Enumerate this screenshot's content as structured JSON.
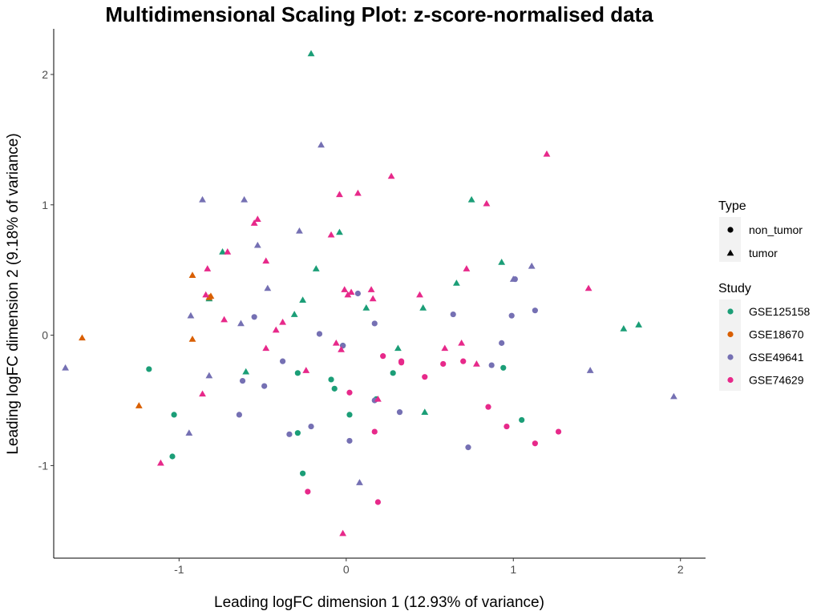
{
  "chart_data": {
    "type": "scatter",
    "title": "Multidimensional Scaling Plot: z-score-normalised data",
    "xlabel": "Leading logFC dimension 1 (12.93% of variance)",
    "ylabel": "Leading logFC dimension 2 (9.18% of variance)",
    "xlim": [
      -1.75,
      2.15
    ],
    "ylim": [
      -1.71,
      2.35
    ],
    "x_ticks": [
      -1,
      0,
      1,
      2
    ],
    "y_ticks": [
      -1,
      0,
      1,
      2
    ],
    "x_tick_labels": [
      "-1",
      "0",
      "1",
      "2"
    ],
    "y_tick_labels": [
      "-1",
      "0",
      "1",
      "2"
    ],
    "grid": false,
    "legend": {
      "placement": "right",
      "shape_title": "Type",
      "shape_entries": [
        {
          "label": "non_tumor",
          "shape": "circle"
        },
        {
          "label": "tumor",
          "shape": "triangle"
        }
      ],
      "color_title": "Study",
      "color_entries": [
        {
          "label": "GSE125158",
          "color": "#1B9E77"
        },
        {
          "label": "GSE18670",
          "color": "#D95F02"
        },
        {
          "label": "GSE49641",
          "color": "#7570B3"
        },
        {
          "label": "GSE74629",
          "color": "#E7298A"
        }
      ]
    },
    "series": [
      {
        "study": "GSE125158",
        "type": "non_tumor",
        "color": "#1B9E77",
        "shape": "circle",
        "points": [
          [
            -1.18,
            -0.26
          ],
          [
            -1.03,
            -0.61
          ],
          [
            -1.04,
            -0.93
          ],
          [
            -0.29,
            -0.29
          ],
          [
            -0.26,
            -1.06
          ],
          [
            -0.29,
            -0.75
          ],
          [
            -0.09,
            -0.34
          ],
          [
            -0.07,
            -0.41
          ],
          [
            0.02,
            -0.61
          ],
          [
            0.18,
            -0.49
          ],
          [
            0.28,
            -0.29
          ],
          [
            0.94,
            -0.25
          ],
          [
            1.05,
            -0.65
          ],
          [
            -0.02,
            -0.08
          ]
        ]
      },
      {
        "study": "GSE125158",
        "type": "tumor",
        "color": "#1B9E77",
        "shape": "triangle",
        "points": [
          [
            -0.21,
            2.16
          ],
          [
            -0.74,
            0.64
          ],
          [
            -0.82,
            0.28
          ],
          [
            -0.6,
            -0.28
          ],
          [
            -0.26,
            0.27
          ],
          [
            -0.31,
            0.16
          ],
          [
            -0.18,
            0.51
          ],
          [
            -0.04,
            0.79
          ],
          [
            0.12,
            0.21
          ],
          [
            0.31,
            -0.1
          ],
          [
            0.46,
            0.21
          ],
          [
            0.66,
            0.4
          ],
          [
            0.75,
            1.04
          ],
          [
            0.93,
            0.56
          ],
          [
            1.66,
            0.05
          ],
          [
            1.75,
            0.08
          ],
          [
            0.47,
            -0.59
          ]
        ]
      },
      {
        "study": "GSE18670",
        "type": "tumor",
        "color": "#D95F02",
        "shape": "triangle",
        "points": [
          [
            -1.58,
            -0.02
          ],
          [
            -1.24,
            -0.54
          ],
          [
            -0.92,
            0.46
          ],
          [
            -0.92,
            -0.03
          ],
          [
            -0.81,
            0.3
          ],
          [
            -0.82,
            0.29
          ]
        ]
      },
      {
        "study": "GSE49641",
        "type": "non_tumor",
        "color": "#7570B3",
        "shape": "circle",
        "points": [
          [
            -0.62,
            -0.35
          ],
          [
            -0.55,
            0.14
          ],
          [
            -0.49,
            -0.39
          ],
          [
            -0.38,
            -0.2
          ],
          [
            -0.34,
            -0.76
          ],
          [
            -0.21,
            -0.7
          ],
          [
            -0.16,
            0.01
          ],
          [
            -0.02,
            -0.08
          ],
          [
            0.02,
            -0.81
          ],
          [
            0.17,
            0.09
          ],
          [
            0.17,
            -0.5
          ],
          [
            0.32,
            -0.59
          ],
          [
            0.64,
            0.16
          ],
          [
            0.73,
            -0.86
          ],
          [
            0.87,
            -0.23
          ],
          [
            0.93,
            -0.06
          ],
          [
            0.99,
            0.15
          ],
          [
            1.01,
            0.43
          ],
          [
            1.13,
            0.19
          ],
          [
            0.07,
            0.32
          ],
          [
            -0.64,
            -0.61
          ]
        ]
      },
      {
        "study": "GSE49641",
        "type": "tumor",
        "color": "#7570B3",
        "shape": "triangle",
        "points": [
          [
            -1.68,
            -0.25
          ],
          [
            -0.86,
            1.04
          ],
          [
            -0.93,
            0.15
          ],
          [
            -0.82,
            -0.31
          ],
          [
            -0.63,
            0.09
          ],
          [
            -0.61,
            1.04
          ],
          [
            -0.53,
            0.69
          ],
          [
            -0.47,
            0.36
          ],
          [
            -0.28,
            0.8
          ],
          [
            -0.15,
            1.46
          ],
          [
            0.08,
            -1.13
          ],
          [
            1.11,
            0.53
          ],
          [
            1.46,
            -0.27
          ],
          [
            1.96,
            -0.47
          ],
          [
            1.0,
            0.43
          ],
          [
            -0.94,
            -0.75
          ]
        ]
      },
      {
        "study": "GSE74629",
        "type": "non_tumor",
        "color": "#E7298A",
        "shape": "circle",
        "points": [
          [
            -0.23,
            -1.2
          ],
          [
            0.02,
            -0.44
          ],
          [
            0.17,
            -0.74
          ],
          [
            0.19,
            -1.28
          ],
          [
            0.22,
            -0.16
          ],
          [
            0.33,
            -0.21
          ],
          [
            0.47,
            -0.32
          ],
          [
            0.58,
            -0.22
          ],
          [
            0.7,
            -0.2
          ],
          [
            0.85,
            -0.55
          ],
          [
            0.96,
            -0.7
          ],
          [
            1.13,
            -0.83
          ],
          [
            1.27,
            -0.74
          ],
          [
            0.33,
            -0.2
          ]
        ]
      },
      {
        "study": "GSE74629",
        "type": "tumor",
        "color": "#E7298A",
        "shape": "triangle",
        "points": [
          [
            -1.11,
            -0.98
          ],
          [
            -0.86,
            -0.45
          ],
          [
            -0.84,
            0.31
          ],
          [
            -0.83,
            0.51
          ],
          [
            -0.73,
            0.12
          ],
          [
            -0.71,
            0.64
          ],
          [
            -0.55,
            0.86
          ],
          [
            -0.53,
            0.89
          ],
          [
            -0.48,
            0.57
          ],
          [
            -0.48,
            -0.1
          ],
          [
            -0.42,
            0.04
          ],
          [
            -0.38,
            0.1
          ],
          [
            -0.24,
            -0.27
          ],
          [
            -0.09,
            0.77
          ],
          [
            -0.06,
            -0.06
          ],
          [
            -0.04,
            1.08
          ],
          [
            -0.01,
            0.35
          ],
          [
            -0.03,
            -0.11
          ],
          [
            0.01,
            0.31
          ],
          [
            0.03,
            0.33
          ],
          [
            0.07,
            1.09
          ],
          [
            0.15,
            0.35
          ],
          [
            0.16,
            0.28
          ],
          [
            0.19,
            -0.49
          ],
          [
            0.27,
            1.22
          ],
          [
            0.44,
            0.31
          ],
          [
            0.59,
            -0.1
          ],
          [
            0.69,
            -0.06
          ],
          [
            0.72,
            0.51
          ],
          [
            0.78,
            -0.22
          ],
          [
            0.84,
            1.01
          ],
          [
            1.2,
            1.39
          ],
          [
            1.45,
            0.36
          ],
          [
            -0.02,
            -1.52
          ]
        ]
      }
    ]
  }
}
